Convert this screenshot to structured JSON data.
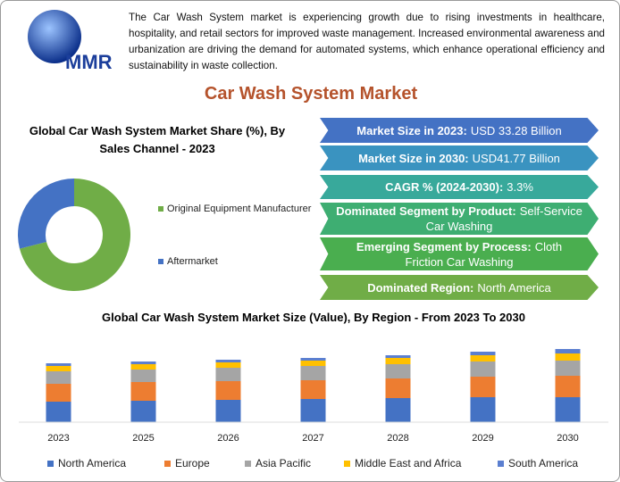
{
  "header": {
    "logo": "MMR",
    "description": "The Car Wash System market is experiencing growth due to rising investments in healthcare, hospitality, and retail sectors for improved waste management. Increased environmental awareness and urbanization are driving the demand for automated systems, which enhance operational efficiency and sustainability in waste collection."
  },
  "title": "Car Wash System Market",
  "info_boxes": [
    {
      "label": "Market Size in 2023:",
      "value": "USD 33.28 Billion",
      "color": "#4472c4"
    },
    {
      "label": "Market Size in 2030:",
      "value": "USD41.77 Billion",
      "color": "#3a93c0"
    },
    {
      "label": "CAGR % (2024-2030):",
      "value": "3.3%",
      "color": "#38a99b"
    },
    {
      "label": "Dominated Segment by Product:",
      "value": "Self-Service Car Washing",
      "color": "#3eae72"
    },
    {
      "label": "Emerging Segment by Process:",
      "value": "Cloth Friction Car Washing",
      "color": "#4aae4f"
    },
    {
      "label": "Dominated Region:",
      "value": "North America",
      "color": "#70ad47"
    }
  ],
  "chart_data": [
    {
      "type": "donut",
      "title": "Global Car Wash System Market Share (%), By Sales Channel - 2023",
      "categories": [
        "Original Equipment Manufacturer",
        "Aftermarket"
      ],
      "values": [
        71,
        29
      ],
      "colors": [
        "#70ad47",
        "#4472c4"
      ]
    },
    {
      "type": "stacked-bar",
      "title": "Global Car Wash System Market Size (Value), By Region - From 2023 To 2030",
      "categories": [
        "2023",
        "2025",
        "2026",
        "2027",
        "2028",
        "2029",
        "2030"
      ],
      "series": [
        {
          "name": "North America",
          "color": "#4472c4",
          "values": [
            23,
            24,
            25,
            26,
            27,
            28,
            28
          ]
        },
        {
          "name": "Europe",
          "color": "#ed7d31",
          "values": [
            20,
            21,
            21,
            21,
            22,
            23,
            24
          ]
        },
        {
          "name": "Asia Pacific",
          "color": "#a5a5a5",
          "values": [
            14,
            14,
            15,
            16,
            16,
            17,
            17
          ]
        },
        {
          "name": "Middle East and Africa",
          "color": "#ffc000",
          "values": [
            6,
            6,
            6,
            6,
            7,
            7,
            8
          ]
        },
        {
          "name": "South America",
          "color": "#5b7fd0",
          "values": [
            3,
            3,
            3,
            3,
            3,
            4,
            5
          ]
        }
      ]
    }
  ]
}
